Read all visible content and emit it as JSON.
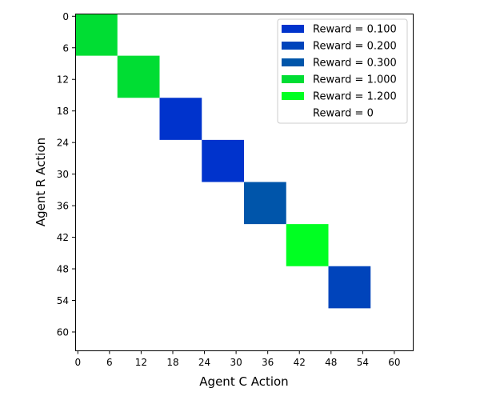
{
  "chart_data": {
    "type": "heatmap",
    "title": "",
    "xlabel": "Agent C Action",
    "ylabel": "Agent R Action",
    "xlim": [
      -0.5,
      63.5
    ],
    "ylim": [
      63.5,
      -0.5
    ],
    "xticks": [
      0,
      6,
      12,
      18,
      24,
      30,
      36,
      42,
      48,
      54,
      60
    ],
    "yticks": [
      0,
      6,
      12,
      18,
      24,
      30,
      36,
      42,
      48,
      54,
      60
    ],
    "grid": false,
    "legend_position": "top-right",
    "background_reward": 0,
    "cells": [
      {
        "x0": -0.5,
        "x1": 7.5,
        "y0": -0.5,
        "y1": 7.5,
        "reward": 1.0
      },
      {
        "x0": 7.5,
        "x1": 15.5,
        "y0": 7.5,
        "y1": 15.5,
        "reward": 1.0
      },
      {
        "x0": 15.5,
        "x1": 23.5,
        "y0": 15.5,
        "y1": 23.5,
        "reward": 0.1
      },
      {
        "x0": 23.5,
        "x1": 31.5,
        "y0": 23.5,
        "y1": 31.5,
        "reward": 0.1
      },
      {
        "x0": 31.5,
        "x1": 39.5,
        "y0": 31.5,
        "y1": 39.5,
        "reward": 0.3
      },
      {
        "x0": 39.5,
        "x1": 47.5,
        "y0": 39.5,
        "y1": 47.5,
        "reward": 1.2
      },
      {
        "x0": 47.5,
        "x1": 55.5,
        "y0": 47.5,
        "y1": 55.5,
        "reward": 0.2
      }
    ],
    "legend": [
      {
        "label": "Reward = 0.100",
        "reward": 0.1,
        "color": "#0033cc"
      },
      {
        "label": "Reward = 0.200",
        "reward": 0.2,
        "color": "#0044bb"
      },
      {
        "label": "Reward = 0.300",
        "reward": 0.3,
        "color": "#0055aa"
      },
      {
        "label": "Reward = 1.000",
        "reward": 1.0,
        "color": "#00dd33"
      },
      {
        "label": "Reward = 1.200",
        "reward": 1.2,
        "color": "#00ff22"
      },
      {
        "label": "Reward = 0",
        "reward": 0,
        "color": "#ffffff"
      }
    ]
  }
}
